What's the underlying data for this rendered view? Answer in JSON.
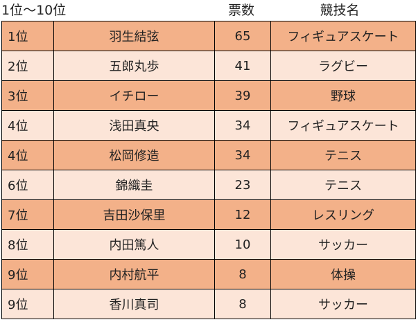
{
  "header": {
    "rank_range": "1位〜10位",
    "votes": "票数",
    "sport": "競技名"
  },
  "rows": [
    {
      "rank": "1位",
      "name": "羽生結弦",
      "votes": "65",
      "sport": "フィギュアスケート"
    },
    {
      "rank": "2位",
      "name": "五郎丸歩",
      "votes": "41",
      "sport": "ラグビー"
    },
    {
      "rank": "3位",
      "name": "イチロー",
      "votes": "39",
      "sport": "野球"
    },
    {
      "rank": "4位",
      "name": "浅田真央",
      "votes": "34",
      "sport": "フィギュアスケート"
    },
    {
      "rank": "4位",
      "name": "松岡修造",
      "votes": "34",
      "sport": "テニス"
    },
    {
      "rank": "6位",
      "name": "錦織圭",
      "votes": "23",
      "sport": "テニス"
    },
    {
      "rank": "7位",
      "name": "吉田沙保里",
      "votes": "12",
      "sport": "レスリング"
    },
    {
      "rank": "8位",
      "name": "内田篤人",
      "votes": "10",
      "sport": "サッカー"
    },
    {
      "rank": "9位",
      "name": "内村航平",
      "votes": "8",
      "sport": "体操"
    },
    {
      "rank": "9位",
      "name": "香川真司",
      "votes": "8",
      "sport": "サッカー"
    }
  ],
  "colors": {
    "row_dark": "#f3b189",
    "row_light": "#fce5d8",
    "border": "#000000"
  }
}
